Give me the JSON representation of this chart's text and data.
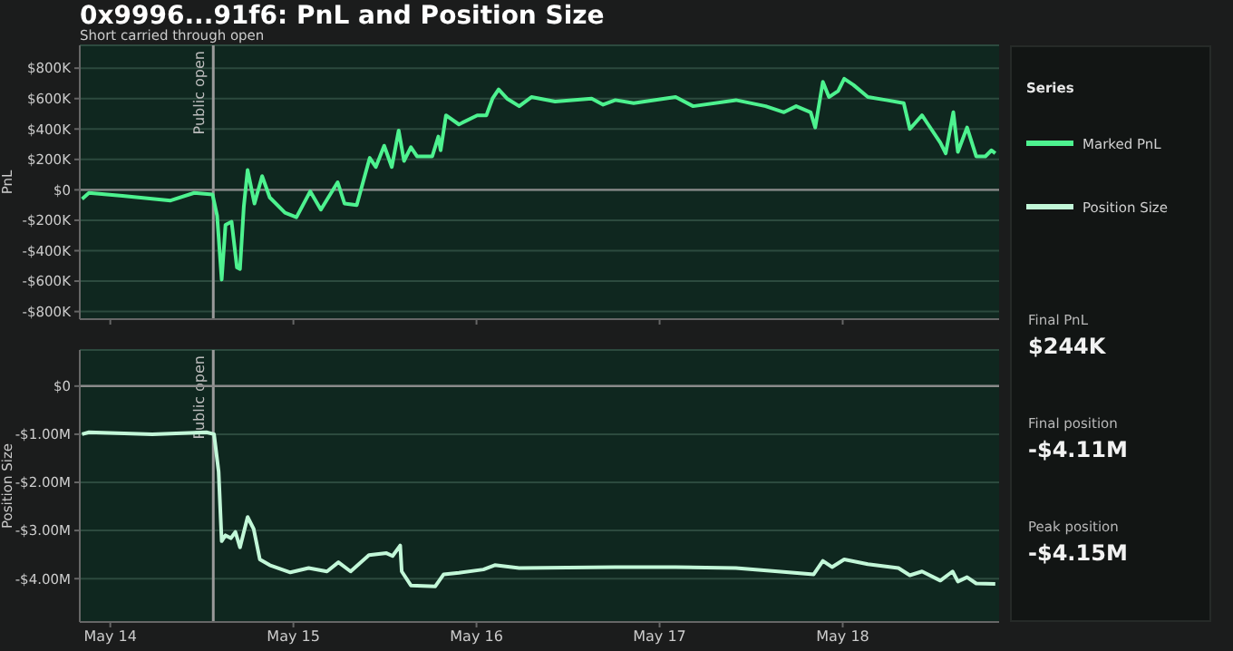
{
  "chart_data": [
    {
      "type": "line",
      "title": "0x9996...91f6: PnL and Position Size",
      "subtitle": "Short carried through open",
      "ylabel": "PnL",
      "legend": "right",
      "legend_title": "Series",
      "grid": "y",
      "tick_labels": "y",
      "xlim": [
        "--05-13T20:00",
        "--05-18T20:30"
      ],
      "xticks": [
        {
          "value": "--05-14",
          "label": null
        },
        {
          "value": "--05-15",
          "label": null
        },
        {
          "value": "--05-16",
          "label": null
        },
        {
          "value": "--05-17",
          "label": null
        },
        {
          "value": "--05-18",
          "label": null
        }
      ],
      "ylim": [
        -850000,
        950000
      ],
      "yticks": [
        {
          "value": 800000,
          "label": "$800K"
        },
        {
          "value": 600000,
          "label": "$600K"
        },
        {
          "value": 400000,
          "label": "$400K"
        },
        {
          "value": 200000,
          "label": "$200K"
        },
        {
          "value": 0,
          "label": "$0"
        },
        {
          "value": -200000,
          "label": "-$200K"
        },
        {
          "value": -400000,
          "label": "-$400K"
        },
        {
          "value": -600000,
          "label": "-$600K"
        },
        {
          "value": -800000,
          "label": "-$800K"
        }
      ],
      "ref_lines": [
        {
          "axis": "x",
          "value": "--05-14T13:30",
          "label": "Public open",
          "color": "#9a9a9a"
        },
        {
          "axis": "y",
          "value": 0,
          "color": "#8a8a8a"
        }
      ],
      "series": [
        {
          "name": "Marked PnL",
          "color": "#4df28f",
          "x": [
            "--05-13T20:18",
            "--05-13T21:12",
            "--05-14T01:36",
            "--05-14T07:54",
            "--05-14T11:00",
            "--05-14T13:24",
            "--05-14T14:00",
            "--05-14T14:36",
            "--05-14T15:06",
            "--05-14T15:54",
            "--05-14T16:36",
            "--05-14T17:00",
            "--05-14T17:30",
            "--05-14T18:00",
            "--05-14T18:54",
            "--05-14T19:54",
            "--05-14T20:54",
            "--05-14T22:54",
            "--05-15T00:24",
            "--05-15T02:12",
            "--05-15T03:36",
            "--05-15T05:48",
            "--05-15T06:42",
            "--05-15T08:18",
            "--05-15T10:00",
            "--05-15T10:48",
            "--05-15T11:54",
            "--05-15T12:54",
            "--05-15T13:48",
            "--05-15T14:30",
            "--05-15T15:24",
            "--05-15T16:12",
            "--05-15T18:12",
            "--05-15T19:00",
            "--05-15T19:18",
            "--05-15T20:00",
            "--05-15T21:42",
            "--05-16T00:06",
            "--05-16T01:18",
            "--05-16T02:06",
            "--05-16T02:54",
            "--05-16T04:00",
            "--05-16T05:36",
            "--05-16T07:12",
            "--05-16T10:18",
            "--05-16T15:06",
            "--05-16T16:36",
            "--05-16T18:12",
            "--05-16T20:36",
            "--05-17T02:06",
            "--05-17T04:24",
            "--05-17T10:00",
            "--05-17T13:54",
            "--05-17T16:18",
            "--05-17T17:54",
            "--05-17T19:48",
            "--05-17T20:24",
            "--05-17T21:24",
            "--05-17T22:12",
            "--05-17T23:24",
            "--05-18T00:12",
            "--05-18T01:24",
            "--05-18T03:18",
            "--05-18T05:42",
            "--05-18T08:00",
            "--05-18T08:48",
            "--05-18T10:24",
            "--05-18T11:12",
            "--05-18T12:48",
            "--05-18T13:30",
            "--05-18T14:30",
            "--05-18T15:06",
            "--05-18T16:18",
            "--05-18T17:30",
            "--05-18T18:42",
            "--05-18T19:30",
            "--05-18T20:00"
          ],
          "values": [
            -60000,
            -20000,
            -40000,
            -70000,
            -20000,
            -30000,
            -170000,
            -590000,
            -230000,
            -210000,
            -510000,
            -520000,
            -110000,
            130000,
            -90000,
            90000,
            -50000,
            -150000,
            -180000,
            -10000,
            -130000,
            50000,
            -90000,
            -100000,
            210000,
            150000,
            290000,
            150000,
            390000,
            190000,
            280000,
            220000,
            220000,
            350000,
            260000,
            490000,
            430000,
            490000,
            490000,
            600000,
            660000,
            600000,
            550000,
            610000,
            580000,
            600000,
            560000,
            590000,
            570000,
            610000,
            550000,
            590000,
            550000,
            510000,
            550000,
            510000,
            410000,
            710000,
            610000,
            650000,
            730000,
            690000,
            610000,
            590000,
            570000,
            400000,
            490000,
            430000,
            310000,
            240000,
            510000,
            250000,
            410000,
            220000,
            220000,
            260000,
            240000
          ]
        }
      ]
    },
    {
      "type": "line",
      "ylabel": "Position Size",
      "legend": "right",
      "grid": "y",
      "xlim": [
        "--05-13T20:00",
        "--05-18T20:30"
      ],
      "xticks": [
        {
          "value": "--05-14",
          "label": "May 14"
        },
        {
          "value": "--05-15",
          "label": "May 15"
        },
        {
          "value": "--05-16",
          "label": "May 16"
        },
        {
          "value": "--05-17",
          "label": "May 17"
        },
        {
          "value": "--05-18",
          "label": "May 18"
        }
      ],
      "ylim": [
        -4900000,
        750000
      ],
      "yticks": [
        {
          "value": 0,
          "label": "$0"
        },
        {
          "value": -1000000,
          "label": "-$1.00M"
        },
        {
          "value": -2000000,
          "label": "-$2.00M"
        },
        {
          "value": -3000000,
          "label": "-$3.00M"
        },
        {
          "value": -4000000,
          "label": "-$4.00M"
        }
      ],
      "ref_lines": [
        {
          "axis": "x",
          "value": "--05-14T13:30",
          "label": "Public open",
          "color": "#9a9a9a"
        },
        {
          "axis": "y",
          "value": 0,
          "color": "#8a8a8a"
        }
      ],
      "series": [
        {
          "name": "Position Size",
          "color": "#c2f7d8",
          "x": [
            "--05-13T20:18",
            "--05-13T21:12",
            "--05-14T05:30",
            "--05-14T12:36",
            "--05-14T13:36",
            "--05-14T14:12",
            "--05-14T14:36",
            "--05-14T15:06",
            "--05-14T15:48",
            "--05-14T16:24",
            "--05-14T17:00",
            "--05-14T18:00",
            "--05-14T18:48",
            "--05-14T19:36",
            "--05-14T20:54",
            "--05-14T23:36",
            "--05-15T02:00",
            "--05-15T04:24",
            "--05-15T05:54",
            "--05-15T07:30",
            "--05-15T09:54",
            "--05-15T12:12",
            "--05-15T13:00",
            "--05-15T14:00",
            "--05-15T14:12",
            "--05-15T15:24",
            "--05-15T18:36",
            "--05-15T19:42",
            "--05-15T21:42",
            "--05-16T00:54",
            "--05-16T02:24",
            "--05-16T05:36",
            "--05-16T18:12",
            "--05-17T02:06",
            "--05-17T10:00",
            "--05-17T15:30",
            "--05-17T20:12",
            "--05-17T21:24",
            "--05-17T22:36",
            "--05-18T00:12",
            "--05-18T03:18",
            "--05-18T07:18",
            "--05-18T08:48",
            "--05-18T10:24",
            "--05-18T12:48",
            "--05-18T14:24",
            "--05-18T15:06",
            "--05-18T16:18",
            "--05-18T17:30",
            "--05-18T20:00"
          ],
          "values": [
            -1000000,
            -960000,
            -1000000,
            -960000,
            -1000000,
            -1780000,
            -3220000,
            -3100000,
            -3160000,
            -3030000,
            -3350000,
            -2720000,
            -2970000,
            -3600000,
            -3720000,
            -3870000,
            -3780000,
            -3850000,
            -3660000,
            -3850000,
            -3510000,
            -3470000,
            -3530000,
            -3310000,
            -3850000,
            -4140000,
            -4160000,
            -3910000,
            -3880000,
            -3810000,
            -3720000,
            -3780000,
            -3760000,
            -3760000,
            -3780000,
            -3850000,
            -3910000,
            -3630000,
            -3760000,
            -3600000,
            -3700000,
            -3780000,
            -3930000,
            -3850000,
            -4040000,
            -3850000,
            -4060000,
            -3970000,
            -4100000,
            -4110000
          ]
        }
      ]
    },
    {
      "type": "other",
      "annotations": [
        "Final PnL",
        "$244K",
        "Final position",
        "-$4.11M",
        "Peak position",
        "-$4.15M"
      ]
    }
  ]
}
